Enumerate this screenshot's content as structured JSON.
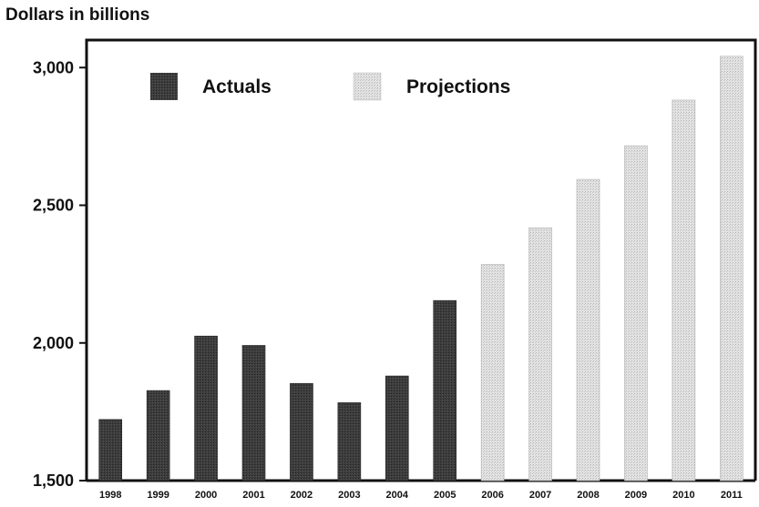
{
  "chart_data": {
    "type": "bar",
    "ylabel": "Dollars in billions",
    "categories": [
      "1998",
      "1999",
      "2000",
      "2001",
      "2002",
      "2003",
      "2004",
      "2005",
      "2006",
      "2007",
      "2008",
      "2009",
      "2010",
      "2011"
    ],
    "series": [
      {
        "name": "Actuals",
        "values": [
          1722,
          1827,
          2025,
          1991,
          1853,
          1783,
          1880,
          2154,
          null,
          null,
          null,
          null,
          null,
          null
        ]
      },
      {
        "name": "Projections",
        "values": [
          null,
          null,
          null,
          null,
          null,
          null,
          null,
          null,
          2285,
          2418,
          2594,
          2716,
          2882,
          3041
        ]
      }
    ],
    "ylim": [
      1500,
      3100
    ],
    "yticks": [
      "1,500",
      "2,000",
      "2,500",
      "3,000"
    ],
    "ytick_values": [
      1500,
      2000,
      2500,
      3000
    ],
    "legend_position": "top",
    "grid": false,
    "colors": {
      "Actuals": "#3a3a3a",
      "Projections": "#dcdcdc"
    }
  }
}
